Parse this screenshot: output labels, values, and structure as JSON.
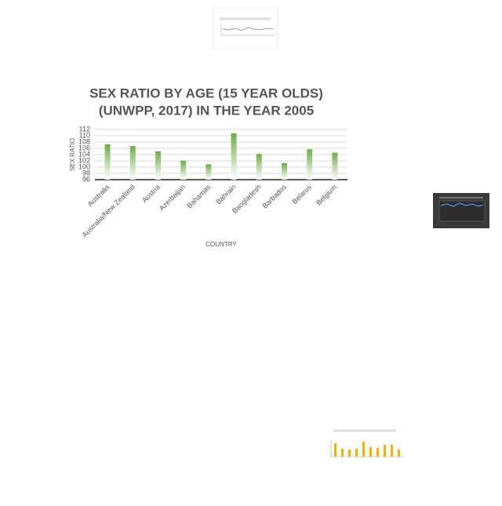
{
  "chart_data": {
    "type": "bar",
    "title": [
      "SEX RATIO BY AGE (15 YEAR OLDS)",
      "(UNWPP, 2017) IN THE YEAR 2005"
    ],
    "x_label": "COUNTRY",
    "y_label": "SEX RATIO",
    "categories": [
      "Australia",
      "Australia/New Zealand",
      "Austria",
      "Azerbaijan",
      "Bahamas",
      "Bahrain",
      "Bangladesh",
      "Barbados",
      "Belarus",
      "Belgium"
    ],
    "values": [
      107.3,
      106.7,
      105.0,
      102.0,
      100.9,
      110.8,
      104.2,
      101.3,
      105.7,
      104.6
    ],
    "color": "#70ad47",
    "ylim": [
      96,
      112
    ],
    "yticks": [
      96,
      98,
      100,
      102,
      104,
      106,
      108,
      110,
      112
    ],
    "grid": true
  }
}
